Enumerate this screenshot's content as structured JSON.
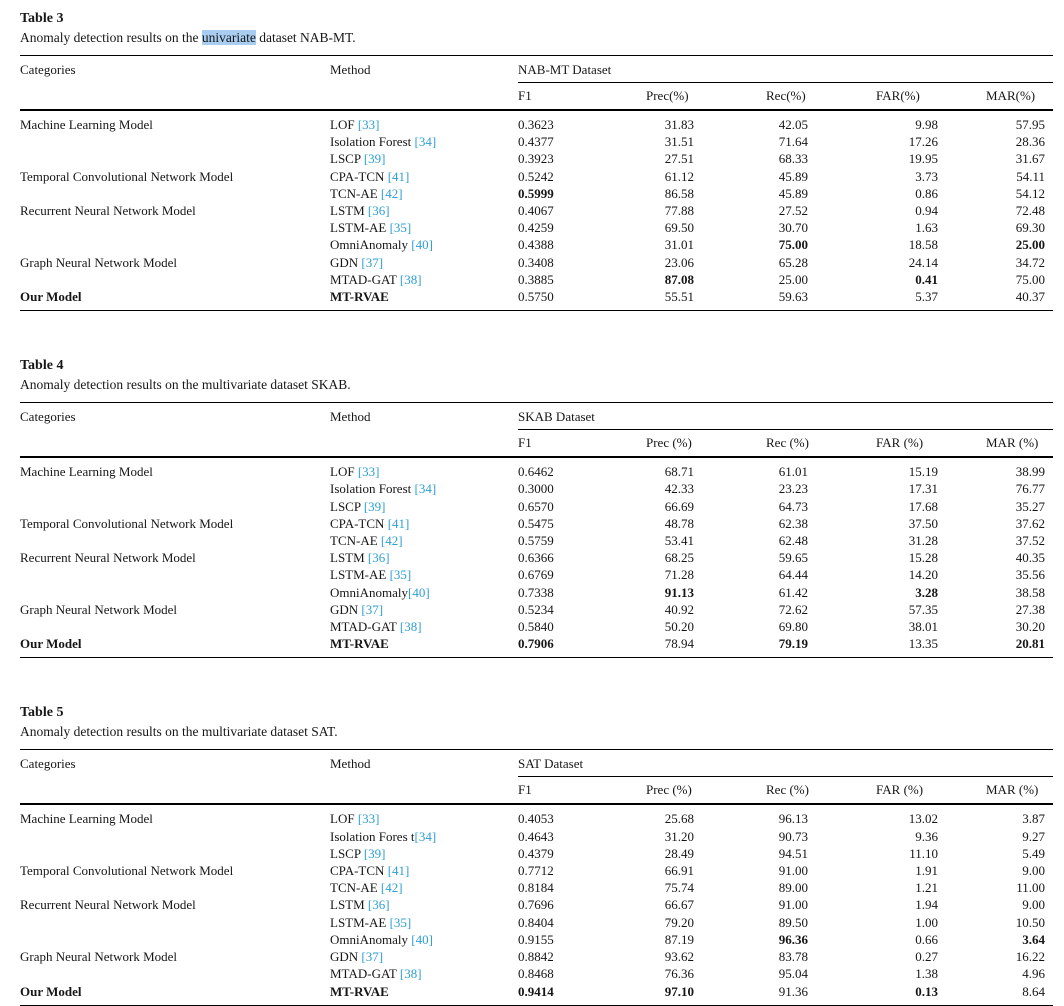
{
  "colors": {
    "citation_blue": "#2e9fd4",
    "highlight_blue": "#a8cdf0",
    "rule_black": "#000000"
  },
  "tables": [
    {
      "label": "Table 3",
      "caption": {
        "before": "Anomaly detection results on the ",
        "highlight": "univariate",
        "after": " dataset NAB-MT."
      },
      "header": {
        "categories": "Categories",
        "method": "Method",
        "dataset": "NAB-MT Dataset",
        "metrics": [
          "F1",
          "Prec(%)",
          "Rec(%)",
          "FAR(%)",
          "MAR(%)"
        ]
      },
      "rows": [
        {
          "category": "Machine Learning Model",
          "category_bold": false,
          "method": "LOF ",
          "method_bold": false,
          "cite": "[33]",
          "values": [
            "0.3623",
            "31.83",
            "42.05",
            "9.98",
            "57.95"
          ],
          "bold_values": []
        },
        {
          "category": "",
          "category_bold": false,
          "method": "Isolation Forest ",
          "method_bold": false,
          "cite": "[34]",
          "values": [
            "0.4377",
            "31.51",
            "71.64",
            "17.26",
            "28.36"
          ],
          "bold_values": []
        },
        {
          "category": "",
          "category_bold": false,
          "method": "LSCP ",
          "method_bold": false,
          "cite": "[39]",
          "values": [
            "0.3923",
            "27.51",
            "68.33",
            "19.95",
            "31.67"
          ],
          "bold_values": []
        },
        {
          "category": "Temporal Convolutional Network Model",
          "category_bold": false,
          "method": "CPA-TCN ",
          "method_bold": false,
          "cite": "[41]",
          "values": [
            "0.5242",
            "61.12",
            "45.89",
            "3.73",
            "54.11"
          ],
          "bold_values": []
        },
        {
          "category": "",
          "category_bold": false,
          "method": "TCN-AE ",
          "method_bold": false,
          "cite": "[42]",
          "values": [
            "0.5999",
            "86.58",
            "45.89",
            "0.86",
            "54.12"
          ],
          "bold_values": [
            0
          ]
        },
        {
          "category": "Recurrent Neural Network Model",
          "category_bold": false,
          "method": "LSTM ",
          "method_bold": false,
          "cite": "[36]",
          "values": [
            "0.4067",
            "77.88",
            "27.52",
            "0.94",
            "72.48"
          ],
          "bold_values": []
        },
        {
          "category": "",
          "category_bold": false,
          "method": "LSTM-AE ",
          "method_bold": false,
          "cite": "[35]",
          "values": [
            "0.4259",
            "69.50",
            "30.70",
            "1.63",
            "69.30"
          ],
          "bold_values": []
        },
        {
          "category": "",
          "category_bold": false,
          "method": "OmniAnomaly ",
          "method_bold": false,
          "cite": "[40]",
          "values": [
            "0.4388",
            "31.01",
            "75.00",
            "18.58",
            "25.00"
          ],
          "bold_values": [
            2,
            4
          ]
        },
        {
          "category": "Graph Neural Network Model",
          "category_bold": false,
          "method": "GDN ",
          "method_bold": false,
          "cite": "[37]",
          "values": [
            "0.3408",
            "23.06",
            "65.28",
            "24.14",
            "34.72"
          ],
          "bold_values": []
        },
        {
          "category": "",
          "category_bold": false,
          "method": "MTAD-GAT ",
          "method_bold": false,
          "cite": "[38]",
          "values": [
            "0.3885",
            "87.08",
            "25.00",
            "0.41",
            "75.00"
          ],
          "bold_values": [
            1,
            3
          ]
        },
        {
          "category": "Our Model",
          "category_bold": true,
          "method": "MT-RVAE",
          "method_bold": true,
          "cite": "",
          "values": [
            "0.5750",
            "55.51",
            "59.63",
            "5.37",
            "40.37"
          ],
          "bold_values": []
        }
      ]
    },
    {
      "label": "Table 4",
      "caption": {
        "before": "Anomaly detection results on the multivariate dataset SKAB.",
        "highlight": "",
        "after": ""
      },
      "header": {
        "categories": "Categories",
        "method": "Method",
        "dataset": "SKAB Dataset",
        "metrics": [
          "F1",
          "Prec (%)",
          "Rec (%)",
          "FAR (%)",
          "MAR (%)"
        ]
      },
      "rows": [
        {
          "category": "Machine Learning Model",
          "category_bold": false,
          "method": "LOF ",
          "method_bold": false,
          "cite": "[33]",
          "values": [
            "0.6462",
            "68.71",
            "61.01",
            "15.19",
            "38.99"
          ],
          "bold_values": []
        },
        {
          "category": "",
          "category_bold": false,
          "method": "Isolation Forest ",
          "method_bold": false,
          "cite": "[34]",
          "values": [
            "0.3000",
            "42.33",
            "23.23",
            "17.31",
            "76.77"
          ],
          "bold_values": []
        },
        {
          "category": "",
          "category_bold": false,
          "method": "LSCP ",
          "method_bold": false,
          "cite": "[39]",
          "values": [
            "0.6570",
            "66.69",
            "64.73",
            "17.68",
            "35.27"
          ],
          "bold_values": []
        },
        {
          "category": "Temporal Convolutional Network Model",
          "category_bold": false,
          "method": "CPA-TCN ",
          "method_bold": false,
          "cite": "[41]",
          "values": [
            "0.5475",
            "48.78",
            "62.38",
            "37.50",
            "37.62"
          ],
          "bold_values": []
        },
        {
          "category": "",
          "category_bold": false,
          "method": "TCN-AE ",
          "method_bold": false,
          "cite": "[42]",
          "values": [
            "0.5759",
            "53.41",
            "62.48",
            "31.28",
            "37.52"
          ],
          "bold_values": []
        },
        {
          "category": "Recurrent Neural Network Model",
          "category_bold": false,
          "method": "LSTM ",
          "method_bold": false,
          "cite": "[36]",
          "values": [
            "0.6366",
            "68.25",
            "59.65",
            "15.28",
            "40.35"
          ],
          "bold_values": []
        },
        {
          "category": "",
          "category_bold": false,
          "method": "LSTM-AE ",
          "method_bold": false,
          "cite": "[35]",
          "values": [
            "0.6769",
            "71.28",
            "64.44",
            "14.20",
            "35.56"
          ],
          "bold_values": []
        },
        {
          "category": "",
          "category_bold": false,
          "method": "OmniAnomaly",
          "method_bold": false,
          "cite": "[40]",
          "values": [
            "0.7338",
            "91.13",
            "61.42",
            "3.28",
            "38.58"
          ],
          "bold_values": [
            1,
            3
          ]
        },
        {
          "category": "Graph Neural Network Model",
          "category_bold": false,
          "method": "GDN ",
          "method_bold": false,
          "cite": "[37]",
          "values": [
            "0.5234",
            "40.92",
            "72.62",
            "57.35",
            "27.38"
          ],
          "bold_values": []
        },
        {
          "category": "",
          "category_bold": false,
          "method": "MTAD-GAT ",
          "method_bold": false,
          "cite": "[38]",
          "values": [
            "0.5840",
            "50.20",
            "69.80",
            "38.01",
            "30.20"
          ],
          "bold_values": []
        },
        {
          "category": "Our Model",
          "category_bold": true,
          "method": "MT-RVAE",
          "method_bold": true,
          "cite": "",
          "values": [
            "0.7906",
            "78.94",
            "79.19",
            "13.35",
            "20.81"
          ],
          "bold_values": [
            0,
            2,
            4
          ]
        }
      ]
    },
    {
      "label": "Table 5",
      "caption": {
        "before": "Anomaly detection results on the multivariate dataset SAT.",
        "highlight": "",
        "after": ""
      },
      "header": {
        "categories": "Categories",
        "method": "Method",
        "dataset": "SAT Dataset",
        "metrics": [
          "F1",
          "Prec (%)",
          "Rec (%)",
          "FAR (%)",
          "MAR (%)"
        ]
      },
      "rows": [
        {
          "category": "Machine Learning Model",
          "category_bold": false,
          "method": "LOF ",
          "method_bold": false,
          "cite": "[33]",
          "values": [
            "0.4053",
            "25.68",
            "96.13",
            "13.02",
            "3.87"
          ],
          "bold_values": []
        },
        {
          "category": "",
          "category_bold": false,
          "method": "Isolation Fores t",
          "method_bold": false,
          "cite": "[34]",
          "values": [
            "0.4643",
            "31.20",
            "90.73",
            "9.36",
            "9.27"
          ],
          "bold_values": []
        },
        {
          "category": "",
          "category_bold": false,
          "method": "LSCP ",
          "method_bold": false,
          "cite": "[39]",
          "values": [
            "0.4379",
            "28.49",
            "94.51",
            "11.10",
            "5.49"
          ],
          "bold_values": []
        },
        {
          "category": "Temporal Convolutional Network Model",
          "category_bold": false,
          "method": "CPA-TCN ",
          "method_bold": false,
          "cite": "[41]",
          "values": [
            "0.7712",
            "66.91",
            "91.00",
            "1.91",
            "9.00"
          ],
          "bold_values": []
        },
        {
          "category": "",
          "category_bold": false,
          "method": "TCN-AE ",
          "method_bold": false,
          "cite": "[42]",
          "values": [
            "0.8184",
            "75.74",
            "89.00",
            "1.21",
            "11.00"
          ],
          "bold_values": []
        },
        {
          "category": "Recurrent Neural Network Model",
          "category_bold": false,
          "method": "LSTM ",
          "method_bold": false,
          "cite": "[36]",
          "values": [
            "0.7696",
            "66.67",
            "91.00",
            "1.94",
            "9.00"
          ],
          "bold_values": []
        },
        {
          "category": "",
          "category_bold": false,
          "method": "LSTM-AE ",
          "method_bold": false,
          "cite": "[35]",
          "values": [
            "0.8404",
            "79.20",
            "89.50",
            "1.00",
            "10.50"
          ],
          "bold_values": []
        },
        {
          "category": "",
          "category_bold": false,
          "method": "OmniAnomaly ",
          "method_bold": false,
          "cite": "[40]",
          "values": [
            "0.9155",
            "87.19",
            "96.36",
            "0.66",
            "3.64"
          ],
          "bold_values": [
            2,
            4
          ]
        },
        {
          "category": "Graph Neural Network Model",
          "category_bold": false,
          "method": "GDN ",
          "method_bold": false,
          "cite": "[37]",
          "values": [
            "0.8842",
            "93.62",
            "83.78",
            "0.27",
            "16.22"
          ],
          "bold_values": []
        },
        {
          "category": "",
          "category_bold": false,
          "method": "MTAD-GAT ",
          "method_bold": false,
          "cite": "[38]",
          "values": [
            "0.8468",
            "76.36",
            "95.04",
            "1.38",
            "4.96"
          ],
          "bold_values": []
        },
        {
          "category": "Our Model",
          "category_bold": true,
          "method": "MT-RVAE",
          "method_bold": true,
          "cite": "",
          "values": [
            "0.9414",
            "97.10",
            "91.36",
            "0.13",
            "8.64"
          ],
          "bold_values": [
            0,
            1,
            3
          ]
        }
      ]
    }
  ]
}
